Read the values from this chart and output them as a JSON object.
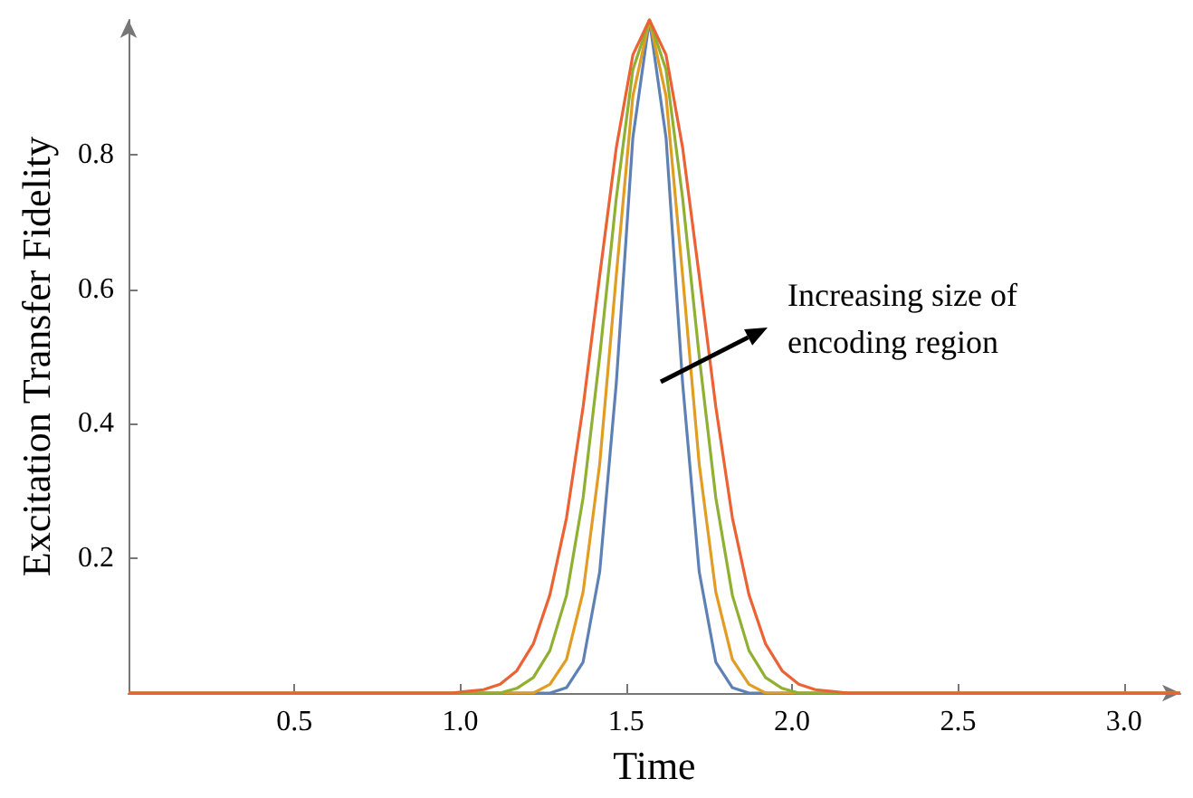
{
  "chart_data": {
    "type": "line",
    "xlabel": "Time",
    "ylabel": "Excitation Transfer Fidelity",
    "marker": "none",
    "line_style": "solid",
    "xlim": [
      0,
      3.17
    ],
    "ylim": [
      0,
      1
    ],
    "xticks": [
      0.5,
      {
        "value": 1,
        "label": "1.0"
      },
      1.5,
      {
        "value": 2,
        "label": "2.0"
      },
      2.5,
      {
        "value": 3,
        "label": "3.0"
      }
    ],
    "yticks": [
      0.2,
      0.4,
      0.6,
      0.8
    ],
    "annotations": [
      "Increasing size of encoding region"
    ],
    "series": [
      {
        "color": "#5e81b5",
        "x": [
          0,
          1.27,
          1.32,
          1.37,
          1.42,
          1.47,
          1.52,
          1.57,
          1.62,
          1.67,
          1.72,
          1.77,
          1.82,
          1.87,
          3.17
        ],
        "values": [
          0,
          0,
          0.008,
          0.046,
          0.18,
          0.46,
          0.825,
          1,
          0.825,
          0.46,
          0.18,
          0.046,
          0.008,
          0,
          0
        ]
      },
      {
        "color": "#e19c24",
        "x": [
          0,
          1.22,
          1.27,
          1.32,
          1.37,
          1.42,
          1.47,
          1.52,
          1.57,
          1.62,
          1.67,
          1.72,
          1.77,
          1.82,
          1.87,
          1.92,
          3.17
        ],
        "values": [
          0,
          0,
          0.013,
          0.05,
          0.15,
          0.34,
          0.62,
          0.887,
          1,
          0.887,
          0.62,
          0.34,
          0.15,
          0.05,
          0.013,
          0,
          0
        ]
      },
      {
        "color": "#8fb032",
        "x": [
          0,
          1.12,
          1.17,
          1.22,
          1.27,
          1.32,
          1.37,
          1.42,
          1.47,
          1.52,
          1.57,
          1.62,
          1.67,
          1.72,
          1.77,
          1.82,
          1.87,
          1.92,
          1.97,
          2.02,
          3.17
        ],
        "values": [
          0,
          0,
          0.007,
          0.023,
          0.063,
          0.145,
          0.29,
          0.5,
          0.735,
          0.926,
          1,
          0.926,
          0.735,
          0.5,
          0.29,
          0.145,
          0.063,
          0.023,
          0.007,
          0,
          0
        ]
      },
      {
        "color": "#eb6235",
        "x": [
          0,
          0.97,
          1.07,
          1.12,
          1.17,
          1.22,
          1.27,
          1.32,
          1.37,
          1.42,
          1.47,
          1.52,
          1.57,
          1.62,
          1.67,
          1.72,
          1.77,
          1.82,
          1.87,
          1.92,
          1.97,
          2.02,
          2.07,
          2.17,
          3.17
        ],
        "values": [
          0,
          0,
          0.005,
          0.013,
          0.033,
          0.073,
          0.146,
          0.26,
          0.425,
          0.62,
          0.81,
          0.948,
          1,
          0.948,
          0.81,
          0.62,
          0.425,
          0.26,
          0.146,
          0.073,
          0.033,
          0.013,
          0.005,
          0,
          0
        ]
      }
    ]
  }
}
